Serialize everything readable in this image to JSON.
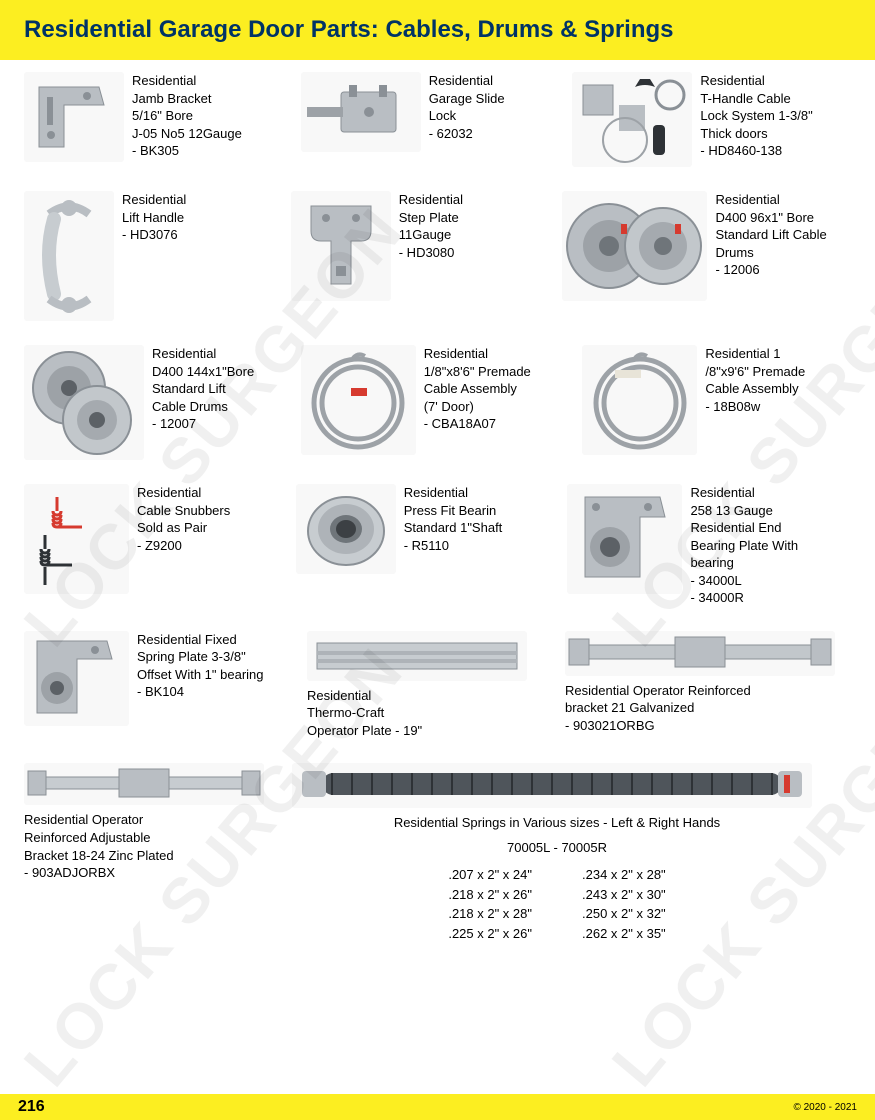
{
  "header": {
    "title": "Residential Garage Door Parts: Cables, Drums & Springs"
  },
  "watermark": "LOCK SURGEON",
  "items": {
    "r1c1": "Residential\nJamb Bracket\n5/16\" Bore\nJ-05 No5 12Gauge\n- BK305",
    "r1c2": "Residential\nGarage Slide\nLock\n- 62032",
    "r1c3": "Residential\nT-Handle Cable\nLock System 1-3/8\"\nThick doors\n- HD8460-138",
    "r2c1": "Residential\nLift Handle\n- HD3076",
    "r2c2": "Residential\nStep Plate\n11Gauge\n- HD3080",
    "r2c3": "Residential\nD400 96x1\" Bore\nStandard Lift Cable\nDrums\n- 12006",
    "r3c1": "Residential\nD400 144x1\"Bore\nStandard Lift\nCable Drums\n- 12007",
    "r3c2": "Residential\n1/8\"x8'6\" Premade\nCable Assembly\n(7' Door)\n- CBA18A07",
    "r3c3": "Residential 1\n/8\"x9'6\" Premade\nCable Assembly\n- 18B08w",
    "r4c1": "Residential\nCable Snubbers\nSold as Pair\n- Z9200",
    "r4c2": "Residential\nPress Fit Bearin\nStandard 1\"Shaft\n- R5110",
    "r4c3": "Residential\n258 13 Gauge\nResidential End\nBearing Plate With\nbearing\n- 34000L\n- 34000R",
    "r5c1": "Residential Fixed\nSpring Plate 3-3/8\"\nOffset With 1\" bearing\n- BK104",
    "r5c2": "Residential\nThermo-Craft\nOperator Plate - 19\"",
    "r5c3": "Residential Operator Reinforced\nbracket 21 Galvanized\n- 903021ORBG",
    "r6c1": "Residential Operator\nReinforced Adjustable\nBracket 18-24 Zinc Plated\n- 903ADJORBX"
  },
  "springs": {
    "title": "Residential Springs in Various sizes - Left & Right Hands",
    "codes": "70005L  -  70005R",
    "left": [
      ".207 x 2\" x 24\"",
      ".218 x 2\" x 26\"",
      ".218 x 2\" x 28\"",
      ".225 x 2\" x 26\""
    ],
    "right": [
      ".234 x 2\" x 28\"",
      ".243 x 2\" x 30\"",
      ".250 x 2\" x 32\"",
      ".262 x 2\" x 35\""
    ]
  },
  "footer": {
    "page": "216",
    "copyright": "© 2020 - 2021"
  },
  "colors": {
    "yellow": "#fcee21",
    "metal": "#b9bec3",
    "metal_dark": "#8a9096",
    "red": "#d63a2f",
    "dark": "#2e3236"
  }
}
